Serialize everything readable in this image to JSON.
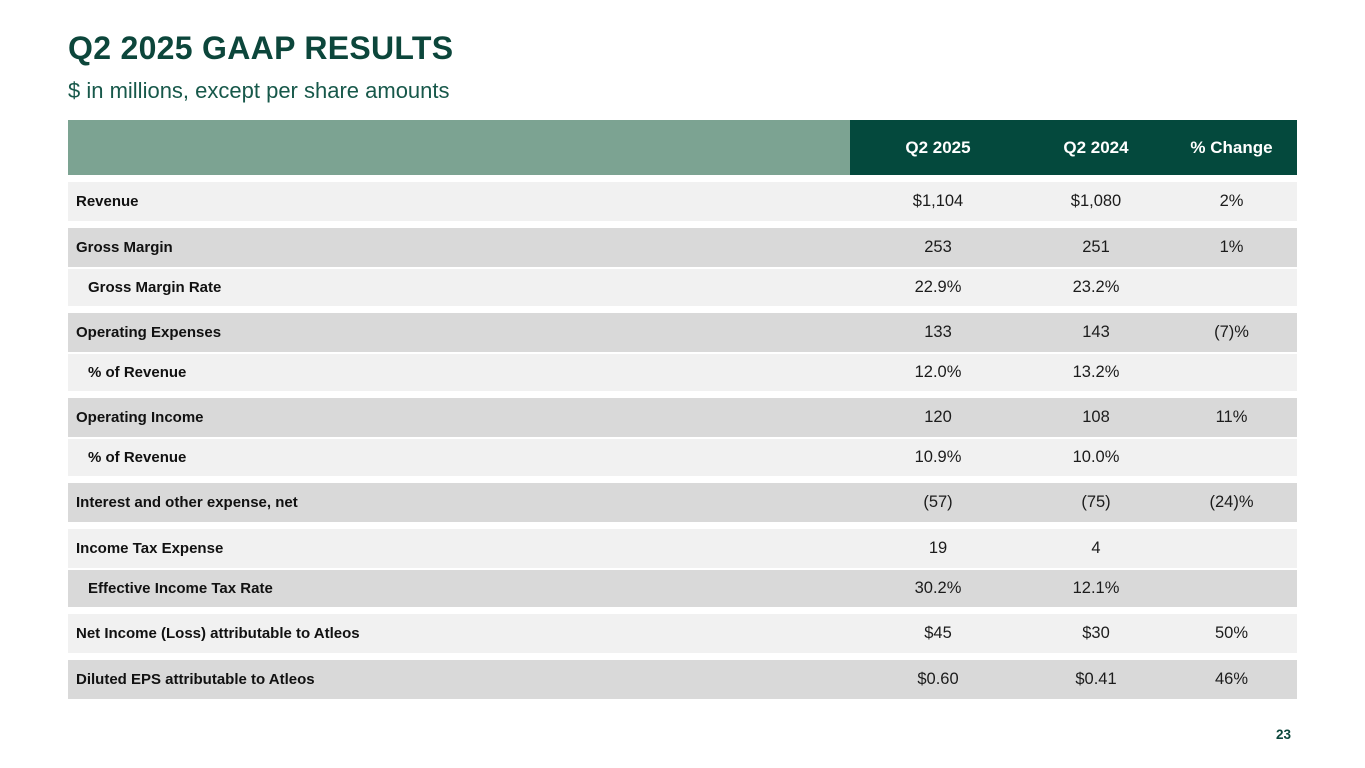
{
  "page": {
    "title": "Q2 2025 GAAP RESULTS",
    "subtitle": "$ in millions, except per share amounts",
    "page_number": "23"
  },
  "colors": {
    "header_green": "#04493D",
    "sage_green": "#7CA392",
    "title_green": "#0C463B",
    "subtitle_green": "#17584A",
    "row_light": "#F1F1F1",
    "row_dark": "#D9D9D9",
    "text_dark": "#1C1C1C"
  },
  "table": {
    "columns": [
      "",
      "Q2 2025",
      "Q2 2024",
      "% Change"
    ],
    "rows": [
      {
        "label": "Revenue",
        "indent": false,
        "group_start": true,
        "shade": "light",
        "q2_2025": "$1,104",
        "q2_2024": "$1,080",
        "pct_change": "2%"
      },
      {
        "label": "Gross Margin",
        "indent": false,
        "group_start": true,
        "shade": "dark",
        "q2_2025": "253",
        "q2_2024": "251",
        "pct_change": "1%"
      },
      {
        "label": "Gross Margin Rate",
        "indent": true,
        "group_start": false,
        "shade": "light",
        "q2_2025": "22.9%",
        "q2_2024": "23.2%",
        "pct_change": ""
      },
      {
        "label": "Operating Expenses",
        "indent": false,
        "group_start": true,
        "shade": "dark",
        "q2_2025": "133",
        "q2_2024": "143",
        "pct_change": "(7)%"
      },
      {
        "label": "% of Revenue",
        "indent": true,
        "group_start": false,
        "shade": "light",
        "q2_2025": "12.0%",
        "q2_2024": "13.2%",
        "pct_change": ""
      },
      {
        "label": "Operating Income",
        "indent": false,
        "group_start": true,
        "shade": "dark",
        "q2_2025": "120",
        "q2_2024": "108",
        "pct_change": "11%"
      },
      {
        "label": "% of Revenue",
        "indent": true,
        "group_start": false,
        "shade": "light",
        "q2_2025": "10.9%",
        "q2_2024": "10.0%",
        "pct_change": ""
      },
      {
        "label": "Interest and other expense, net",
        "indent": false,
        "group_start": true,
        "shade": "dark",
        "q2_2025": "(57)",
        "q2_2024": "(75)",
        "pct_change": "(24)%"
      },
      {
        "label": "Income Tax Expense",
        "indent": false,
        "group_start": true,
        "shade": "light",
        "q2_2025": "19",
        "q2_2024": "4",
        "pct_change": ""
      },
      {
        "label": "Effective Income Tax Rate",
        "indent": true,
        "group_start": false,
        "shade": "dark",
        "q2_2025": "30.2%",
        "q2_2024": "12.1%",
        "pct_change": ""
      },
      {
        "label": "Net Income (Loss) attributable to Atleos",
        "indent": false,
        "group_start": true,
        "shade": "light",
        "q2_2025": "$45",
        "q2_2024": "$30",
        "pct_change": "50%"
      },
      {
        "label": "Diluted EPS attributable to Atleos",
        "indent": false,
        "group_start": true,
        "shade": "dark",
        "q2_2025": "$0.60",
        "q2_2024": "$0.41",
        "pct_change": "46%"
      }
    ]
  }
}
